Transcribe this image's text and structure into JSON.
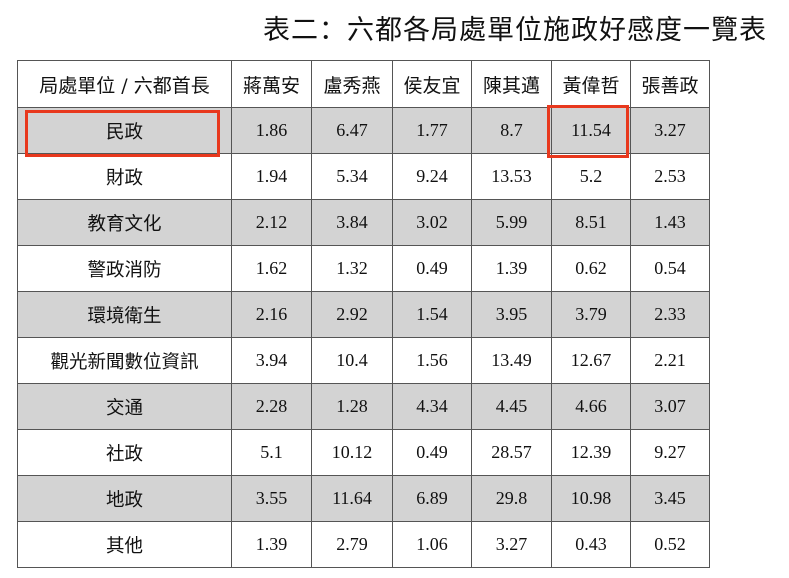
{
  "title": "表二：六都各局處單位施政好感度一覽表",
  "columns": [
    "局處單位 / 六都首長",
    "蔣萬安",
    "盧秀燕",
    "侯友宜",
    "陳其邁",
    "黃偉哲",
    "張善政"
  ],
  "rows": [
    {
      "label": "民政",
      "values": [
        "1.86",
        "6.47",
        "1.77",
        "8.7",
        "11.54",
        "3.27"
      ]
    },
    {
      "label": "財政",
      "values": [
        "1.94",
        "5.34",
        "9.24",
        "13.53",
        "5.2",
        "2.53"
      ]
    },
    {
      "label": "教育文化",
      "values": [
        "2.12",
        "3.84",
        "3.02",
        "5.99",
        "8.51",
        "1.43"
      ]
    },
    {
      "label": "警政消防",
      "values": [
        "1.62",
        "1.32",
        "0.49",
        "1.39",
        "0.62",
        "0.54"
      ]
    },
    {
      "label": "環境衛生",
      "values": [
        "2.16",
        "2.92",
        "1.54",
        "3.95",
        "3.79",
        "2.33"
      ]
    },
    {
      "label": "觀光新聞數位資訊",
      "values": [
        "3.94",
        "10.4",
        "1.56",
        "13.49",
        "12.67",
        "2.21"
      ]
    },
    {
      "label": "交通",
      "values": [
        "2.28",
        "1.28",
        "4.34",
        "4.45",
        "4.66",
        "3.07"
      ]
    },
    {
      "label": "社政",
      "values": [
        "5.1",
        "10.12",
        "0.49",
        "28.57",
        "12.39",
        "9.27"
      ]
    },
    {
      "label": "地政",
      "values": [
        "3.55",
        "11.64",
        "6.89",
        "29.8",
        "10.98",
        "3.45"
      ]
    },
    {
      "label": "其他",
      "values": [
        "1.39",
        "2.79",
        "1.06",
        "3.27",
        "0.43",
        "0.52"
      ]
    }
  ],
  "highlight_color": "#e8381d",
  "shade_color": "#d3d3d3"
}
